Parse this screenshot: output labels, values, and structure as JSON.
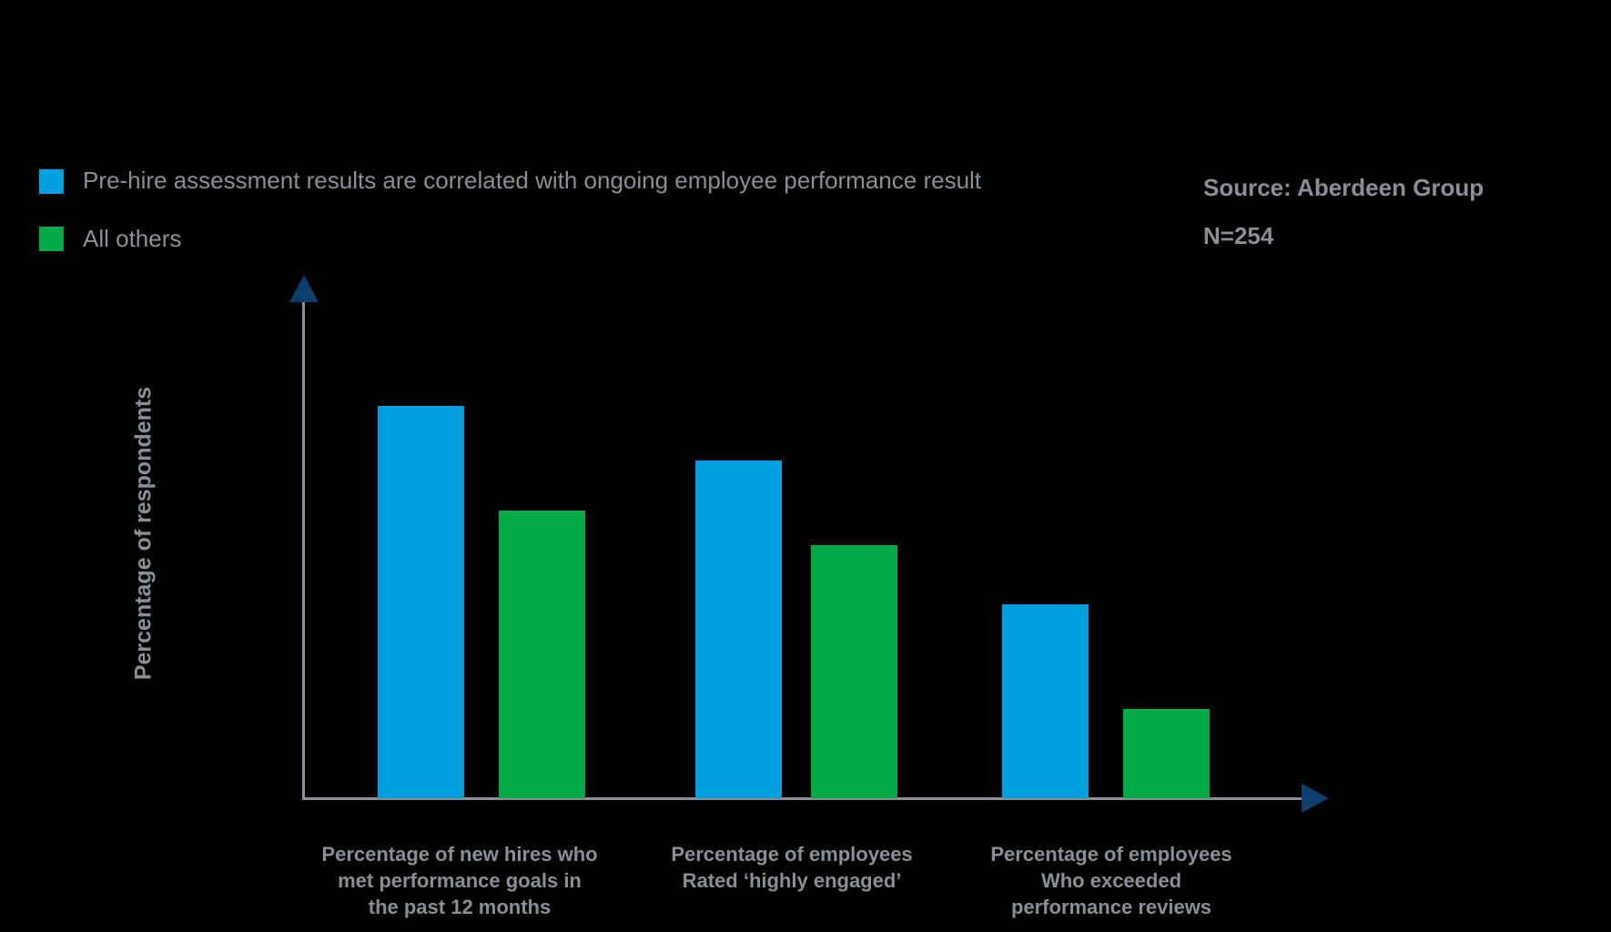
{
  "legend": {
    "items": [
      {
        "label": "Pre-hire assessment results are correlated with ongoing employee performance result",
        "color": "#009fdf"
      },
      {
        "label": "All others",
        "color": "#00aa44"
      }
    ]
  },
  "source": {
    "line1": "Source: Aberdeen Group",
    "line2": "N=254"
  },
  "axes": {
    "ylabel": "Percentage of respondents",
    "axis_color": "#8a8f96",
    "arrow_color": "#0e3e6e"
  },
  "categories": [
    {
      "label": "Percentage of new hires who\nmet performance goals in\nthe past 12 months"
    },
    {
      "label": "Percentage of employees\nRated ‘highly engaged’"
    },
    {
      "label": "Percentage of employees\nWho exceeded\nperformance reviews"
    }
  ],
  "chart_data": {
    "type": "bar",
    "title": "",
    "xlabel": "",
    "ylabel": "Percentage of respondents",
    "categories": [
      "Percentage of new hires who met performance goals in the past 12 months",
      "Percentage of employees Rated ‘highly engaged’",
      "Percentage of employees Who exceeded performance reviews"
    ],
    "series": [
      {
        "name": "Pre-hire assessment results are correlated with ongoing employee performance result",
        "color": "#009fdf",
        "values": [
          79,
          68,
          39
        ]
      },
      {
        "name": "All others",
        "color": "#00aa44",
        "values": [
          58,
          51,
          18
        ]
      }
    ],
    "ylim": [
      0,
      100
    ],
    "y_ticks_shown": false,
    "grid": false,
    "legend_position": "top-left",
    "annotations": [
      "Source: Aberdeen Group",
      "N=254"
    ],
    "note": "No numeric axis ticks shown; values are relative estimates from bar heights."
  }
}
